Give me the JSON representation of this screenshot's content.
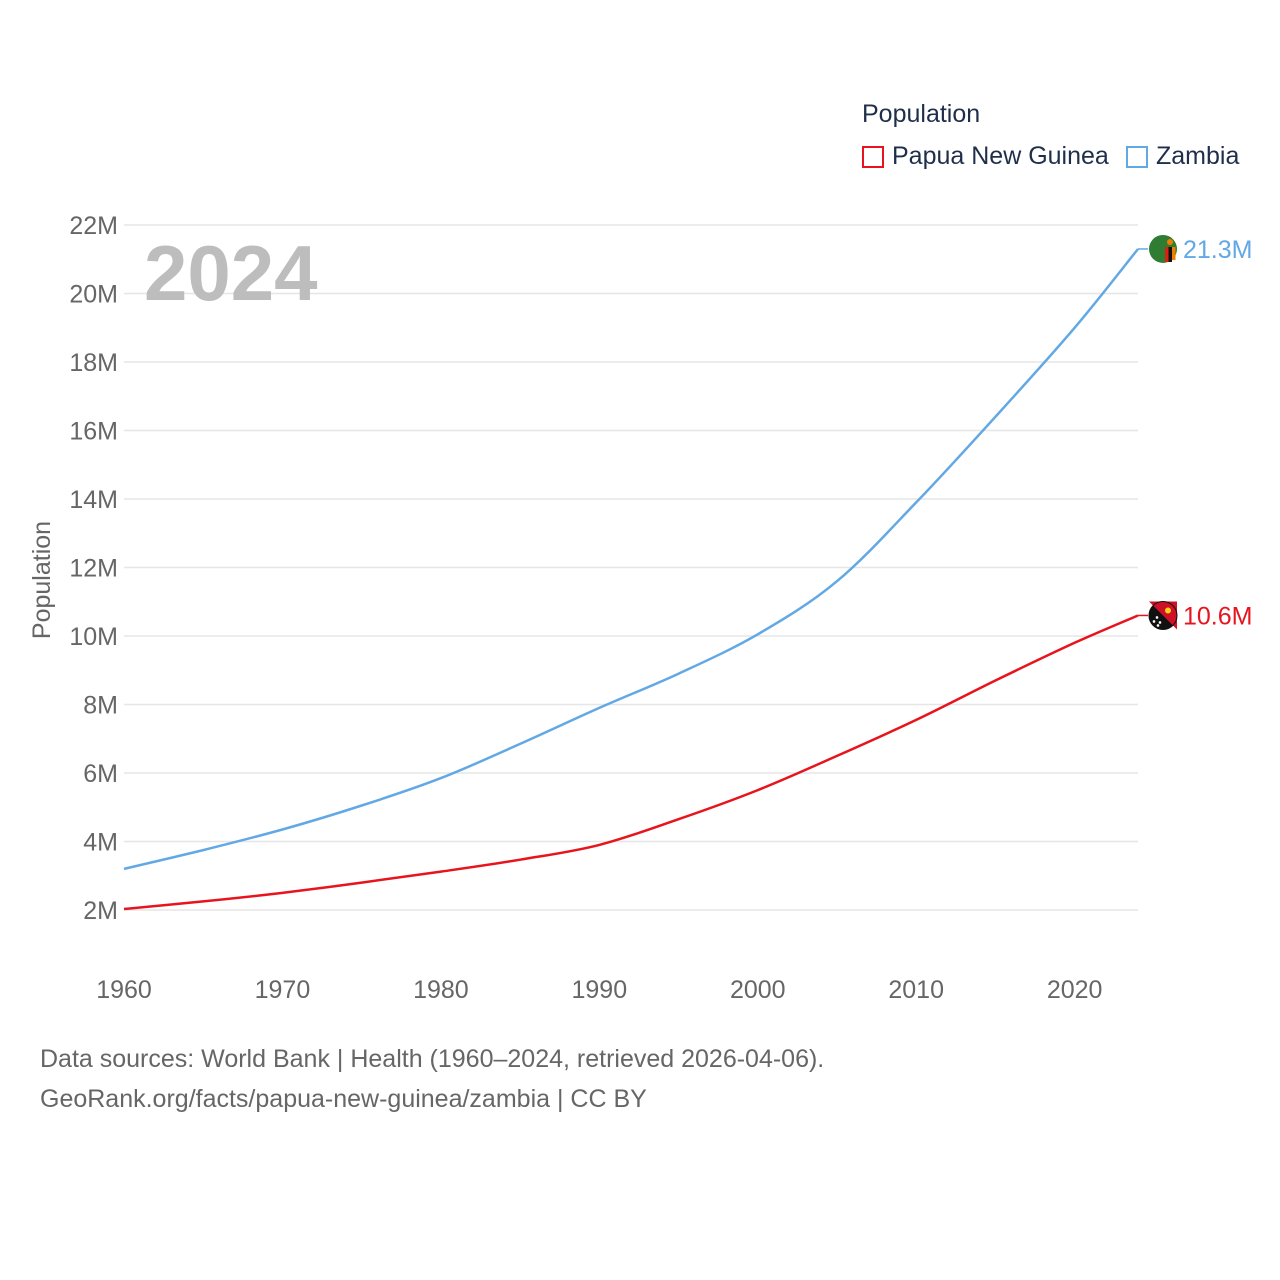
{
  "legend": {
    "title": "Population",
    "items": [
      {
        "label": "Papua New Guinea",
        "color": "#e8141d"
      },
      {
        "label": "Zambia",
        "color": "#62a8e5"
      }
    ]
  },
  "year_watermark": "2024",
  "source": {
    "line1": "Data sources: World Bank | Health (1960–2024, retrieved 2026-04-06).",
    "line2": "GeoRank.org/facts/papua-new-guinea/zambia | CC BY"
  },
  "chart_data": {
    "type": "line",
    "title": "",
    "xlabel": "",
    "ylabel": "Population",
    "xlim": [
      1960,
      2024
    ],
    "ylim": [
      0.9,
      22.5
    ],
    "x_ticks": [
      1960,
      1970,
      1980,
      1990,
      2000,
      2010,
      2020
    ],
    "y_ticks": [
      2,
      4,
      6,
      8,
      10,
      12,
      14,
      16,
      18,
      20,
      22
    ],
    "y_tick_labels": [
      "2M",
      "4M",
      "6M",
      "8M",
      "10M",
      "12M",
      "14M",
      "16M",
      "18M",
      "20M",
      "22M"
    ],
    "unit": "millions",
    "series": [
      {
        "name": "Papua New Guinea",
        "color": "#e8141d",
        "end_label": "10.6M",
        "x": [
          1960,
          1965,
          1970,
          1975,
          1980,
          1985,
          1990,
          1995,
          2000,
          2005,
          2010,
          2015,
          2020,
          2024
        ],
        "values": [
          2.03,
          2.25,
          2.5,
          2.8,
          3.12,
          3.47,
          3.9,
          4.65,
          5.5,
          6.5,
          7.55,
          8.7,
          9.8,
          10.6
        ]
      },
      {
        "name": "Zambia",
        "color": "#62a8e5",
        "end_label": "21.3M",
        "x": [
          1960,
          1965,
          1970,
          1975,
          1980,
          1985,
          1990,
          1995,
          2000,
          2005,
          2010,
          2015,
          2020,
          2024
        ],
        "values": [
          3.2,
          3.75,
          4.35,
          5.05,
          5.85,
          6.85,
          7.9,
          8.9,
          10.05,
          11.6,
          13.9,
          16.4,
          19.0,
          21.3
        ]
      }
    ]
  }
}
